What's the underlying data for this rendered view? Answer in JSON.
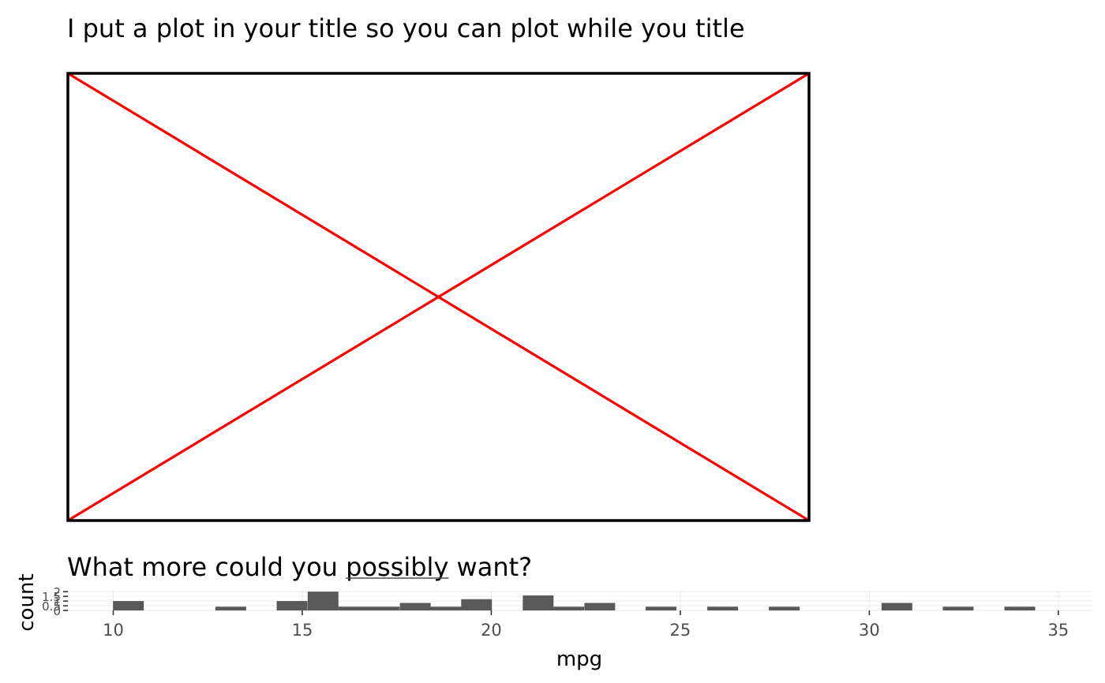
{
  "title": {
    "text": "I put a plot in your title so you can plot while you title"
  },
  "subtitle": {
    "prefix": "What more could you ",
    "emphasis": "possibly",
    "suffix": " want?"
  },
  "colors": {
    "placeholder_border": "#000000",
    "placeholder_cross": "#ff0000",
    "bar_fill": "#595959",
    "grid": "#ebebeb",
    "axis_text": "#4d4d4d",
    "text": "#000000",
    "subtitle_underline": "#4d4d4d"
  },
  "chart_data": {
    "type": "bar",
    "geom": "histogram",
    "xlabel": "mpg",
    "ylabel": "count",
    "xlim": [
      8.8,
      35.9
    ],
    "ylim": [
      0,
      2.1
    ],
    "binwidth": 0.8133,
    "xticks": [
      10,
      15,
      20,
      25,
      30,
      35
    ],
    "yticks": [
      0,
      0.5,
      1,
      1.5,
      2
    ],
    "ytick_labels": [
      "0",
      "0.5",
      "1",
      "1.5",
      "2"
    ],
    "bins": [
      {
        "x": 10.4,
        "count": 1
      },
      {
        "x": 13.11,
        "count": 0.4
      },
      {
        "x": 14.73,
        "count": 1
      },
      {
        "x": 15.55,
        "count": 2
      },
      {
        "x": 16.36,
        "count": 0.4
      },
      {
        "x": 17.17,
        "count": 0.4
      },
      {
        "x": 17.99,
        "count": 0.8
      },
      {
        "x": 18.8,
        "count": 0.4
      },
      {
        "x": 19.61,
        "count": 1.2
      },
      {
        "x": 21.24,
        "count": 1.6
      },
      {
        "x": 22.05,
        "count": 0.4
      },
      {
        "x": 22.87,
        "count": 0.8
      },
      {
        "x": 24.49,
        "count": 0.4
      },
      {
        "x": 26.12,
        "count": 0.4
      },
      {
        "x": 27.75,
        "count": 0.4
      },
      {
        "x": 30.73,
        "count": 0.8
      },
      {
        "x": 32.35,
        "count": 0.4
      },
      {
        "x": 33.98,
        "count": 0.4
      }
    ]
  }
}
